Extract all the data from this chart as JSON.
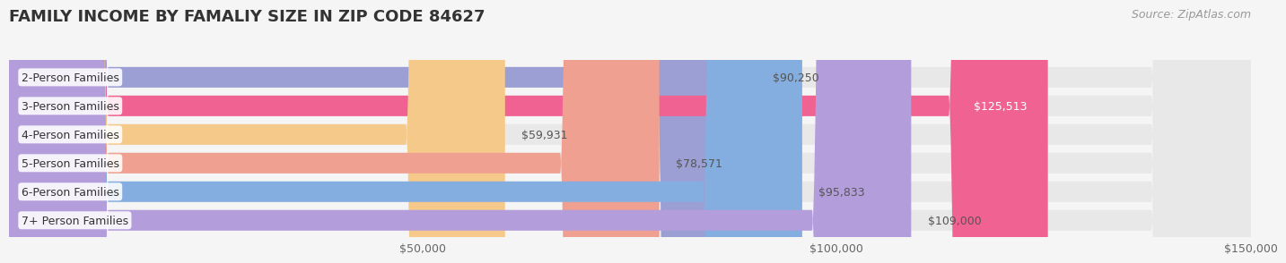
{
  "title": "FAMILY INCOME BY FAMALIY SIZE IN ZIP CODE 84627",
  "source": "Source: ZipAtlas.com",
  "categories": [
    "2-Person Families",
    "3-Person Families",
    "4-Person Families",
    "5-Person Families",
    "6-Person Families",
    "7+ Person Families"
  ],
  "values": [
    90250,
    125513,
    59931,
    78571,
    95833,
    109000
  ],
  "bar_colors": [
    "#9b9fd4",
    "#f06292",
    "#f5c98a",
    "#f0a090",
    "#85aee0",
    "#b39ddb"
  ],
  "label_colors": [
    "#555555",
    "#ffffff",
    "#555555",
    "#555555",
    "#555555",
    "#555555"
  ],
  "value_labels": [
    "$90,250",
    "$125,513",
    "$59,931",
    "$78,571",
    "$95,833",
    "$109,000"
  ],
  "value_inside": [
    false,
    true,
    false,
    false,
    false,
    false
  ],
  "xmin": 0,
  "xmax": 150000,
  "xticks": [
    0,
    50000,
    100000,
    150000
  ],
  "xtick_labels": [
    "",
    "$50,000",
    "$100,000",
    "$150,000"
  ],
  "bg_color": "#f5f5f5",
  "bar_bg_color": "#e8e8e8",
  "title_fontsize": 13,
  "label_fontsize": 9,
  "value_fontsize": 9,
  "source_fontsize": 9
}
